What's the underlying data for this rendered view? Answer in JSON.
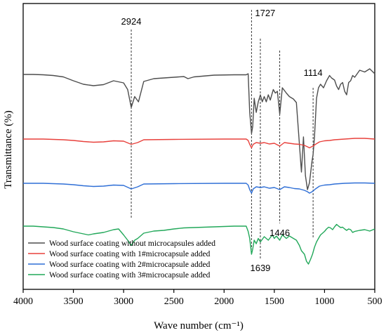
{
  "chart_data": {
    "type": "line",
    "xlabel": "Wave number (cm⁻¹)",
    "ylabel": "Transmittance (%)",
    "xlim": [
      4000,
      500
    ],
    "x_reversed": true,
    "xticks": [
      "4000",
      "3500",
      "3000",
      "2500",
      "2000",
      "1500",
      "1000",
      "500"
    ],
    "yticks_shown": false,
    "legend_position": "bottom-left",
    "annotations": [
      {
        "label": "2924",
        "x": 2924
      },
      {
        "label": "1727",
        "x": 1727
      },
      {
        "label": "1639",
        "x": 1639
      },
      {
        "label": "1446",
        "x": 1446
      },
      {
        "label": "1114",
        "x": 1114
      }
    ],
    "series": [
      {
        "name": "Wood surface coating without microcapsules added",
        "color": "#4d4d4d",
        "offset": 100,
        "points": [
          [
            4000,
            2
          ],
          [
            3900,
            2
          ],
          [
            3800,
            3
          ],
          [
            3700,
            5
          ],
          [
            3600,
            9
          ],
          [
            3500,
            20
          ],
          [
            3400,
            30
          ],
          [
            3300,
            34
          ],
          [
            3200,
            31
          ],
          [
            3100,
            20
          ],
          [
            3000,
            26
          ],
          [
            2960,
            45
          ],
          [
            2924,
            96
          ],
          [
            2890,
            65
          ],
          [
            2852,
            80
          ],
          [
            2800,
            22
          ],
          [
            2700,
            14
          ],
          [
            2600,
            12
          ],
          [
            2500,
            10
          ],
          [
            2400,
            8
          ],
          [
            2360,
            14
          ],
          [
            2300,
            9
          ],
          [
            2100,
            4
          ],
          [
            1900,
            3
          ],
          [
            1780,
            3
          ],
          [
            1760,
            0
          ],
          [
            1745,
            110
          ],
          [
            1727,
            170
          ],
          [
            1715,
            150
          ],
          [
            1700,
            70
          ],
          [
            1680,
            110
          ],
          [
            1660,
            80
          ],
          [
            1639,
            60
          ],
          [
            1620,
            80
          ],
          [
            1600,
            65
          ],
          [
            1580,
            80
          ],
          [
            1560,
            60
          ],
          [
            1540,
            75
          ],
          [
            1510,
            45
          ],
          [
            1490,
            55
          ],
          [
            1470,
            50
          ],
          [
            1446,
            115
          ],
          [
            1420,
            40
          ],
          [
            1380,
            55
          ],
          [
            1350,
            65
          ],
          [
            1310,
            72
          ],
          [
            1280,
            82
          ],
          [
            1250,
            200
          ],
          [
            1230,
            280
          ],
          [
            1210,
            180
          ],
          [
            1190,
            290
          ],
          [
            1170,
            330
          ],
          [
            1150,
            310
          ],
          [
            1125,
            250
          ],
          [
            1114,
            230
          ],
          [
            1100,
            180
          ],
          [
            1080,
            70
          ],
          [
            1060,
            40
          ],
          [
            1040,
            30
          ],
          [
            1010,
            40
          ],
          [
            980,
            20
          ],
          [
            950,
            5
          ],
          [
            930,
            12
          ],
          [
            900,
            18
          ],
          [
            880,
            35
          ],
          [
            860,
            45
          ],
          [
            840,
            30
          ],
          [
            820,
            25
          ],
          [
            800,
            50
          ],
          [
            780,
            60
          ],
          [
            760,
            25
          ],
          [
            740,
            20
          ],
          [
            720,
            5
          ],
          [
            700,
            10
          ],
          [
            650,
            -10
          ],
          [
            600,
            -5
          ],
          [
            550,
            -14
          ],
          [
            500,
            0
          ]
        ]
      },
      {
        "name": "Wood surface coating with 1#microcapsule added",
        "color": "#e8413c",
        "offset": 193,
        "points": [
          [
            4000,
            0
          ],
          [
            3800,
            0
          ],
          [
            3600,
            2
          ],
          [
            3500,
            4
          ],
          [
            3400,
            7
          ],
          [
            3300,
            9
          ],
          [
            3200,
            8
          ],
          [
            3100,
            5
          ],
          [
            3000,
            6
          ],
          [
            2924,
            15
          ],
          [
            2860,
            10
          ],
          [
            2800,
            2
          ],
          [
            2500,
            1
          ],
          [
            2000,
            0
          ],
          [
            1780,
            0
          ],
          [
            1760,
            4
          ],
          [
            1745,
            15
          ],
          [
            1727,
            25
          ],
          [
            1710,
            15
          ],
          [
            1680,
            10
          ],
          [
            1639,
            12
          ],
          [
            1600,
            10
          ],
          [
            1550,
            14
          ],
          [
            1500,
            12
          ],
          [
            1446,
            20
          ],
          [
            1400,
            10
          ],
          [
            1350,
            12
          ],
          [
            1300,
            14
          ],
          [
            1250,
            15
          ],
          [
            1200,
            18
          ],
          [
            1170,
            22
          ],
          [
            1150,
            25
          ],
          [
            1130,
            22
          ],
          [
            1114,
            20
          ],
          [
            1090,
            15
          ],
          [
            1050,
            8
          ],
          [
            1000,
            5
          ],
          [
            950,
            4
          ],
          [
            900,
            2
          ],
          [
            800,
            0
          ],
          [
            700,
            -2
          ],
          [
            600,
            -2
          ],
          [
            500,
            0
          ]
        ]
      },
      {
        "name": "Wood surface coating with 2#microcapsule added",
        "color": "#2f6fd6",
        "offset": 256,
        "points": [
          [
            4000,
            0
          ],
          [
            3800,
            0
          ],
          [
            3600,
            2
          ],
          [
            3500,
            4
          ],
          [
            3400,
            7
          ],
          [
            3300,
            9
          ],
          [
            3200,
            8
          ],
          [
            3100,
            5
          ],
          [
            3000,
            6
          ],
          [
            2924,
            16
          ],
          [
            2860,
            10
          ],
          [
            2800,
            2
          ],
          [
            2500,
            1
          ],
          [
            2000,
            0
          ],
          [
            1780,
            0
          ],
          [
            1760,
            5
          ],
          [
            1745,
            18
          ],
          [
            1727,
            28
          ],
          [
            1710,
            16
          ],
          [
            1680,
            10
          ],
          [
            1639,
            12
          ],
          [
            1600,
            10
          ],
          [
            1550,
            14
          ],
          [
            1500,
            12
          ],
          [
            1446,
            18
          ],
          [
            1400,
            10
          ],
          [
            1350,
            12
          ],
          [
            1300,
            15
          ],
          [
            1250,
            16
          ],
          [
            1200,
            20
          ],
          [
            1170,
            24
          ],
          [
            1150,
            28
          ],
          [
            1130,
            25
          ],
          [
            1114,
            22
          ],
          [
            1090,
            16
          ],
          [
            1050,
            8
          ],
          [
            1000,
            5
          ],
          [
            950,
            4
          ],
          [
            900,
            2
          ],
          [
            800,
            0
          ],
          [
            700,
            -1
          ],
          [
            600,
            -1
          ],
          [
            500,
            0
          ]
        ]
      },
      {
        "name": "Wood surface coating with 3#microcapsule added",
        "color": "#22a85a",
        "offset": 317,
        "points": [
          [
            4000,
            0
          ],
          [
            3900,
            0
          ],
          [
            3800,
            2
          ],
          [
            3700,
            4
          ],
          [
            3600,
            8
          ],
          [
            3500,
            16
          ],
          [
            3400,
            22
          ],
          [
            3350,
            25
          ],
          [
            3300,
            22
          ],
          [
            3200,
            18
          ],
          [
            3100,
            10
          ],
          [
            3050,
            8
          ],
          [
            3000,
            25
          ],
          [
            2960,
            40
          ],
          [
            2924,
            55
          ],
          [
            2890,
            40
          ],
          [
            2860,
            35
          ],
          [
            2800,
            20
          ],
          [
            2700,
            14
          ],
          [
            2600,
            12
          ],
          [
            2500,
            8
          ],
          [
            2400,
            5
          ],
          [
            2300,
            4
          ],
          [
            2100,
            2
          ],
          [
            1900,
            0
          ],
          [
            1780,
            0
          ],
          [
            1760,
            15
          ],
          [
            1745,
            35
          ],
          [
            1727,
            80
          ],
          [
            1715,
            65
          ],
          [
            1700,
            40
          ],
          [
            1680,
            50
          ],
          [
            1660,
            35
          ],
          [
            1639,
            45
          ],
          [
            1600,
            30
          ],
          [
            1560,
            40
          ],
          [
            1520,
            25
          ],
          [
            1500,
            35
          ],
          [
            1480,
            28
          ],
          [
            1446,
            40
          ],
          [
            1420,
            25
          ],
          [
            1380,
            35
          ],
          [
            1350,
            28
          ],
          [
            1310,
            35
          ],
          [
            1280,
            40
          ],
          [
            1250,
            55
          ],
          [
            1230,
            70
          ],
          [
            1200,
            80
          ],
          [
            1180,
            100
          ],
          [
            1160,
            108
          ],
          [
            1140,
            95
          ],
          [
            1120,
            80
          ],
          [
            1100,
            60
          ],
          [
            1080,
            45
          ],
          [
            1060,
            35
          ],
          [
            1040,
            25
          ],
          [
            1020,
            20
          ],
          [
            1000,
            15
          ],
          [
            980,
            8
          ],
          [
            960,
            3
          ],
          [
            940,
            5
          ],
          [
            920,
            10
          ],
          [
            900,
            2
          ],
          [
            880,
            -5
          ],
          [
            860,
            0
          ],
          [
            840,
            4
          ],
          [
            820,
            3
          ],
          [
            800,
            8
          ],
          [
            780,
            12
          ],
          [
            760,
            8
          ],
          [
            740,
            10
          ],
          [
            720,
            18
          ],
          [
            700,
            15
          ],
          [
            650,
            12
          ],
          [
            600,
            10
          ],
          [
            550,
            14
          ],
          [
            500,
            8
          ]
        ]
      }
    ]
  }
}
